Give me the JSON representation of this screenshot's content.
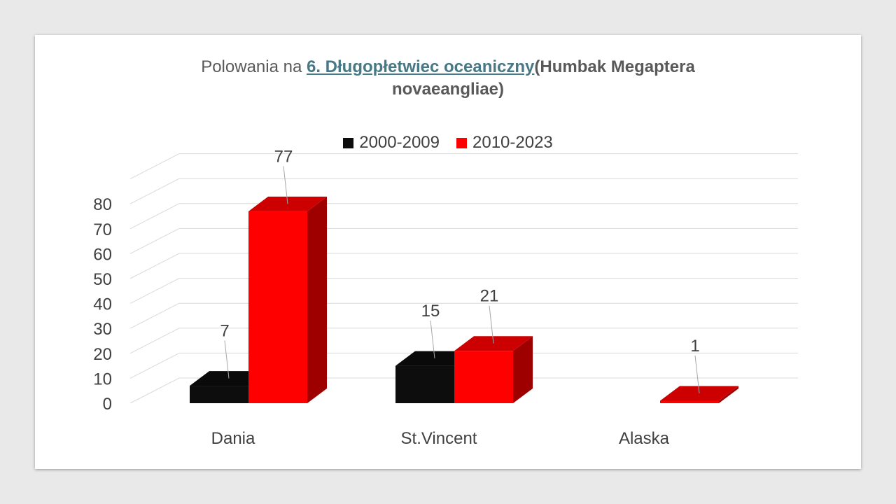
{
  "title": {
    "prefix": "Polowania na ",
    "link": "6. Długopłetwiec oceaniczny",
    "suffix_line1": "(Humbak Megaptera",
    "suffix_line2": "novaeangliae)"
  },
  "colors": {
    "series1": "#0d0d0d",
    "series2": "#ff0000",
    "gridline": "#d9d9d9",
    "text": "#404040",
    "background": "#ffffff"
  },
  "chart_data": {
    "type": "bar",
    "style": "3d-clustered-column",
    "categories": [
      "Dania",
      "St.Vincent",
      "Alaska"
    ],
    "series": [
      {
        "name": "2000-2009",
        "values": [
          7,
          15,
          0
        ]
      },
      {
        "name": "2010-2023",
        "values": [
          77,
          21,
          1
        ]
      }
    ],
    "data_labels": [
      {
        "series": 0,
        "category": 0,
        "text": "7"
      },
      {
        "series": 1,
        "category": 0,
        "text": "77"
      },
      {
        "series": 0,
        "category": 1,
        "text": "15"
      },
      {
        "series": 1,
        "category": 1,
        "text": "21"
      },
      {
        "series": 1,
        "category": 2,
        "text": "1"
      }
    ],
    "y_ticks": [
      0,
      10,
      20,
      30,
      40,
      50,
      60,
      70,
      80
    ],
    "ylim": [
      0,
      80
    ],
    "grid": true,
    "legend_position": "top"
  }
}
